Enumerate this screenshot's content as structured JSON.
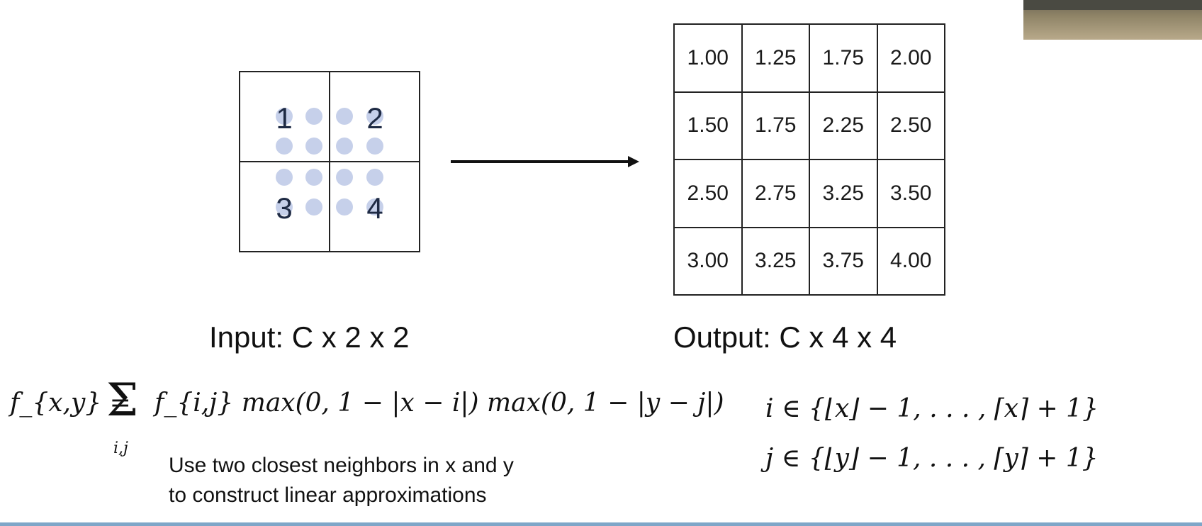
{
  "input": {
    "values": [
      "1",
      "2",
      "3",
      "4"
    ],
    "caption": "Input: C x 2 x 2"
  },
  "output": {
    "rows": [
      [
        "1.00",
        "1.25",
        "1.75",
        "2.00"
      ],
      [
        "1.50",
        "1.75",
        "2.25",
        "2.50"
      ],
      [
        "2.50",
        "2.75",
        "3.25",
        "3.50"
      ],
      [
        "3.00",
        "3.25",
        "3.75",
        "4.00"
      ]
    ],
    "caption": "Output: C x 4 x 4"
  },
  "formula": {
    "lhs": "f_{x,y} =",
    "sigma": "Σ",
    "sum_index": "i,j",
    "rhs": "f_{i,j} max(0, 1 − |x − i|) max(0, 1 − |y − j|)",
    "range_i": "i ∈ {⌊x⌋ − 1, . . . , ⌈x⌉ + 1}",
    "range_j": "j ∈ {⌊y⌋ − 1, . . . , ⌈y⌉ + 1}"
  },
  "note": {
    "line1": "Use two closest neighbors in x and y",
    "line2": "to construct linear approximations"
  },
  "colors": {
    "dot": "#c6d0ea",
    "number": "#1e2a44",
    "grid": "#222222"
  }
}
